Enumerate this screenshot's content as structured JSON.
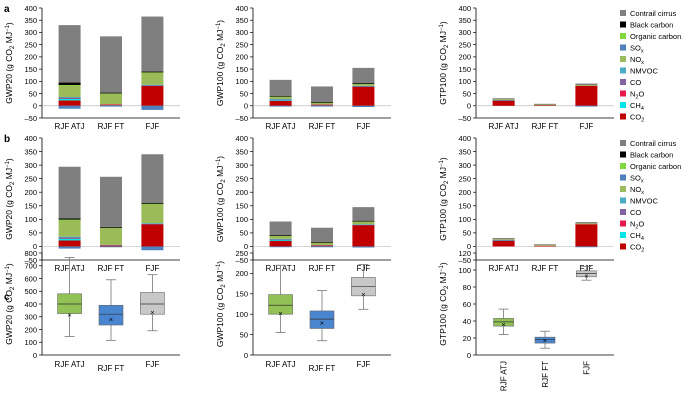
{
  "figure": {
    "panel_letters": [
      "a",
      "b",
      "c"
    ],
    "x_categories": [
      "RJF ATJ",
      "RJF FT",
      "FJF"
    ],
    "gas": {
      "co2": "CO",
      "sub2": "2",
      "mj": "MJ",
      "sup": "−1"
    },
    "axis_label_prefixes": [
      "GWP20 (g ",
      "GWP100 (g ",
      "GTP100 (g "
    ]
  },
  "legend": [
    {
      "label": "Contrail cirrus",
      "color": "#7f7f7f"
    },
    {
      "label": "Black carbon",
      "color": "#000000"
    },
    {
      "label": "Organic carbon",
      "color": "#7fd93a"
    },
    {
      "label": "SO",
      "sub": "x",
      "color": "#4f81bd"
    },
    {
      "label": "NO",
      "sub": "x",
      "color": "#9bbb59"
    },
    {
      "label": "NMVOC",
      "color": "#4bacc6"
    },
    {
      "label": "CO",
      "color": "#8064a2"
    },
    {
      "label": "N",
      "sub": "2",
      "tail": "O",
      "color": "#e6194b"
    },
    {
      "label": "CH",
      "sub": "4",
      "color": "#00e5e5"
    },
    {
      "label": "CO",
      "sub": "2",
      "color": "#c00000"
    }
  ],
  "chart_data": [
    {
      "panel": "a",
      "type": "bar",
      "stacked": true,
      "metric": "GWP20",
      "ylabel": "GWP20 (g CO2 MJ−1)",
      "ylim": [
        -50,
        400
      ],
      "yticks": [
        -50,
        0,
        50,
        100,
        150,
        200,
        250,
        300,
        350,
        400
      ],
      "categories": [
        "RJF ATJ",
        "RJF FT",
        "FJF"
      ],
      "series": [
        {
          "name": "Contrail cirrus",
          "values": [
            235,
            230,
            225
          ]
        },
        {
          "name": "Black carbon",
          "values": [
            10,
            1,
            1
          ]
        },
        {
          "name": "Organic carbon",
          "values": [
            1,
            0,
            1
          ]
        },
        {
          "name": "SOx",
          "values": [
            -12,
            -2,
            -17
          ]
        },
        {
          "name": "NOx",
          "values": [
            48,
            47,
            52
          ]
        },
        {
          "name": "NMVOC",
          "values": [
            2,
            0,
            2
          ]
        },
        {
          "name": "CO",
          "values": [
            2,
            0,
            2
          ]
        },
        {
          "name": "N2O",
          "values": [
            2,
            1,
            0
          ]
        },
        {
          "name": "CH4",
          "values": [
            8,
            2,
            0
          ]
        },
        {
          "name": "CO2",
          "values": [
            22,
            3,
            82
          ]
        }
      ]
    },
    {
      "panel": "a",
      "type": "bar",
      "stacked": true,
      "metric": "GWP100",
      "ylabel": "GWP100 (g CO2 MJ−1)",
      "ylim": [
        -50,
        400
      ],
      "yticks": [
        -50,
        0,
        50,
        100,
        150,
        200,
        250,
        300,
        350,
        400
      ],
      "categories": [
        "RJF ATJ",
        "RJF FT",
        "FJF"
      ],
      "series": [
        {
          "name": "Contrail cirrus",
          "values": [
            65,
            63,
            62
          ]
        },
        {
          "name": "Black carbon",
          "values": [
            3,
            1,
            1
          ]
        },
        {
          "name": "Organic carbon",
          "values": [
            0,
            0,
            0
          ]
        },
        {
          "name": "SOx",
          "values": [
            -3,
            -1,
            -5
          ]
        },
        {
          "name": "NOx",
          "values": [
            10,
            10,
            10
          ]
        },
        {
          "name": "NMVOC",
          "values": [
            1,
            0,
            1
          ]
        },
        {
          "name": "CO",
          "values": [
            1,
            0,
            1
          ]
        },
        {
          "name": "N2O",
          "values": [
            2,
            1,
            0
          ]
        },
        {
          "name": "CH4",
          "values": [
            4,
            1,
            0
          ]
        },
        {
          "name": "CO2",
          "values": [
            20,
            3,
            80
          ]
        }
      ]
    },
    {
      "panel": "a",
      "type": "bar",
      "stacked": true,
      "metric": "GTP100",
      "ylabel": "GTP100 (g CO2 MJ−1)",
      "ylim": [
        -50,
        400
      ],
      "yticks": [
        -50,
        0,
        50,
        100,
        150,
        200,
        250,
        300,
        350,
        400
      ],
      "categories": [
        "RJF ATJ",
        "RJF FT",
        "FJF"
      ],
      "series": [
        {
          "name": "Contrail cirrus",
          "values": [
            4,
            3,
            6
          ]
        },
        {
          "name": "Black carbon",
          "values": [
            0,
            0,
            0
          ]
        },
        {
          "name": "Organic carbon",
          "values": [
            0,
            0,
            0
          ]
        },
        {
          "name": "SOx",
          "values": [
            0,
            0,
            -1
          ]
        },
        {
          "name": "NOx",
          "values": [
            2,
            1,
            3
          ]
        },
        {
          "name": "NMVOC",
          "values": [
            0,
            0,
            0
          ]
        },
        {
          "name": "CO",
          "values": [
            0,
            0,
            0
          ]
        },
        {
          "name": "N2O",
          "values": [
            2,
            1,
            0
          ]
        },
        {
          "name": "CH4",
          "values": [
            1,
            0,
            0
          ]
        },
        {
          "name": "CO2",
          "values": [
            22,
            3,
            82
          ]
        }
      ]
    },
    {
      "panel": "b",
      "type": "bar",
      "stacked": true,
      "metric": "GWP20",
      "ylabel": "GWP20 (g CO2 MJ−1)",
      "ylim": [
        -50,
        400
      ],
      "yticks": [
        -50,
        0,
        50,
        100,
        150,
        200,
        250,
        300,
        350,
        400
      ],
      "categories": [
        "RJF ATJ",
        "RJF FT",
        "FJF"
      ],
      "series": [
        {
          "name": "Contrail cirrus",
          "values": [
            190,
            185,
            180
          ]
        },
        {
          "name": "Black carbon",
          "values": [
            5,
            1,
            1
          ]
        },
        {
          "name": "Organic carbon",
          "values": [
            1,
            0,
            1
          ]
        },
        {
          "name": "SOx",
          "values": [
            -8,
            -2,
            -14
          ]
        },
        {
          "name": "NOx",
          "values": [
            62,
            65,
            72
          ]
        },
        {
          "name": "NMVOC",
          "values": [
            2,
            0,
            2
          ]
        },
        {
          "name": "CO",
          "values": [
            2,
            0,
            2
          ]
        },
        {
          "name": "N2O",
          "values": [
            2,
            1,
            0
          ]
        },
        {
          "name": "CH4",
          "values": [
            8,
            2,
            0
          ]
        },
        {
          "name": "CO2",
          "values": [
            22,
            3,
            82
          ]
        }
      ]
    },
    {
      "panel": "b",
      "type": "bar",
      "stacked": true,
      "metric": "GWP100",
      "ylabel": "GWP100 (g CO2 MJ−1)",
      "ylim": [
        -50,
        400
      ],
      "yticks": [
        -50,
        0,
        50,
        100,
        150,
        200,
        250,
        300,
        350,
        400
      ],
      "categories": [
        "RJF ATJ",
        "RJF FT",
        "FJF"
      ],
      "series": [
        {
          "name": "Contrail cirrus",
          "values": [
            50,
            52,
            50
          ]
        },
        {
          "name": "Black carbon",
          "values": [
            2,
            1,
            1
          ]
        },
        {
          "name": "Organic carbon",
          "values": [
            0,
            0,
            0
          ]
        },
        {
          "name": "SOx",
          "values": [
            -2,
            -1,
            -4
          ]
        },
        {
          "name": "NOx",
          "values": [
            12,
            11,
            12
          ]
        },
        {
          "name": "NMVOC",
          "values": [
            1,
            0,
            1
          ]
        },
        {
          "name": "CO",
          "values": [
            1,
            0,
            1
          ]
        },
        {
          "name": "N2O",
          "values": [
            2,
            1,
            0
          ]
        },
        {
          "name": "CH4",
          "values": [
            4,
            1,
            0
          ]
        },
        {
          "name": "CO2",
          "values": [
            20,
            3,
            80
          ]
        }
      ]
    },
    {
      "panel": "b",
      "type": "bar",
      "stacked": true,
      "metric": "GTP100",
      "ylabel": "GTP100 (g CO2 MJ−1)",
      "ylim": [
        -50,
        400
      ],
      "yticks": [
        -50,
        0,
        50,
        100,
        150,
        200,
        250,
        300,
        350,
        400
      ],
      "categories": [
        "RJF ATJ",
        "RJF FT",
        "FJF"
      ],
      "series": [
        {
          "name": "Contrail cirrus",
          "values": [
            4,
            3,
            5
          ]
        },
        {
          "name": "Black carbon",
          "values": [
            0,
            0,
            0
          ]
        },
        {
          "name": "Organic carbon",
          "values": [
            0,
            0,
            0
          ]
        },
        {
          "name": "SOx",
          "values": [
            0,
            0,
            -1
          ]
        },
        {
          "name": "NOx",
          "values": [
            2,
            1,
            3
          ]
        },
        {
          "name": "NMVOC",
          "values": [
            0,
            0,
            0
          ]
        },
        {
          "name": "CO",
          "values": [
            0,
            0,
            0
          ]
        },
        {
          "name": "N2O",
          "values": [
            2,
            1,
            0
          ]
        },
        {
          "name": "CH4",
          "values": [
            1,
            0,
            0
          ]
        },
        {
          "name": "CO2",
          "values": [
            22,
            3,
            82
          ]
        }
      ]
    },
    {
      "panel": "c",
      "type": "box",
      "metric": "GWP20",
      "ylabel": "GWP20 (g CO2 MJ−1)",
      "ylim": [
        0,
        800
      ],
      "yticks": [
        0,
        100,
        200,
        300,
        400,
        500,
        600,
        700,
        800
      ],
      "categories": [
        "RJF ATJ",
        "RJF FT",
        "FJF"
      ],
      "colors": [
        "#92c155",
        "#4a86d0",
        "#c8c8c8"
      ],
      "boxes": [
        {
          "min": 145,
          "q1": 325,
          "median": 400,
          "q3": 480,
          "max": 765,
          "mean": 315
        },
        {
          "min": 115,
          "q1": 235,
          "median": 320,
          "q3": 390,
          "max": 590,
          "mean": 280
        },
        {
          "min": 190,
          "q1": 320,
          "median": 400,
          "q3": 490,
          "max": 630,
          "mean": 335
        }
      ]
    },
    {
      "panel": "c",
      "type": "box",
      "metric": "GWP100",
      "ylabel": "GWP100 (g CO2 MJ−1)",
      "ylim": [
        0,
        250
      ],
      "yticks": [
        0,
        50,
        100,
        150,
        200,
        250
      ],
      "categories": [
        "RJF ATJ",
        "RJF FT",
        "FJF"
      ],
      "colors": [
        "#92c155",
        "#4a86d0",
        "#c8c8c8"
      ],
      "boxes": [
        {
          "min": 55,
          "q1": 100,
          "median": 122,
          "q3": 148,
          "max": 220,
          "mean": 102
        },
        {
          "min": 35,
          "q1": 65,
          "median": 88,
          "q3": 108,
          "max": 158,
          "mean": 78
        },
        {
          "min": 112,
          "q1": 145,
          "median": 168,
          "q3": 190,
          "max": 222,
          "mean": 148
        }
      ]
    },
    {
      "panel": "c",
      "type": "box",
      "metric": "GTP100",
      "ylabel": "GTP100 (g CO2 MJ−1)",
      "ylim": [
        0,
        120
      ],
      "yticks": [
        0,
        20,
        40,
        60,
        80,
        100,
        120
      ],
      "categories": [
        "RJF ATJ",
        "RJF FT",
        "FJF"
      ],
      "colors": [
        "#92c155",
        "#4a86d0",
        "#c8c8c8"
      ],
      "boxes": [
        {
          "min": 24,
          "q1": 34,
          "median": 39,
          "q3": 43,
          "max": 54,
          "mean": 36
        },
        {
          "min": 8,
          "q1": 14,
          "median": 18,
          "q3": 21,
          "max": 28,
          "mean": 17
        },
        {
          "min": 88,
          "q1": 92,
          "median": 96,
          "q3": 99,
          "max": 104,
          "mean": 93
        }
      ]
    }
  ]
}
